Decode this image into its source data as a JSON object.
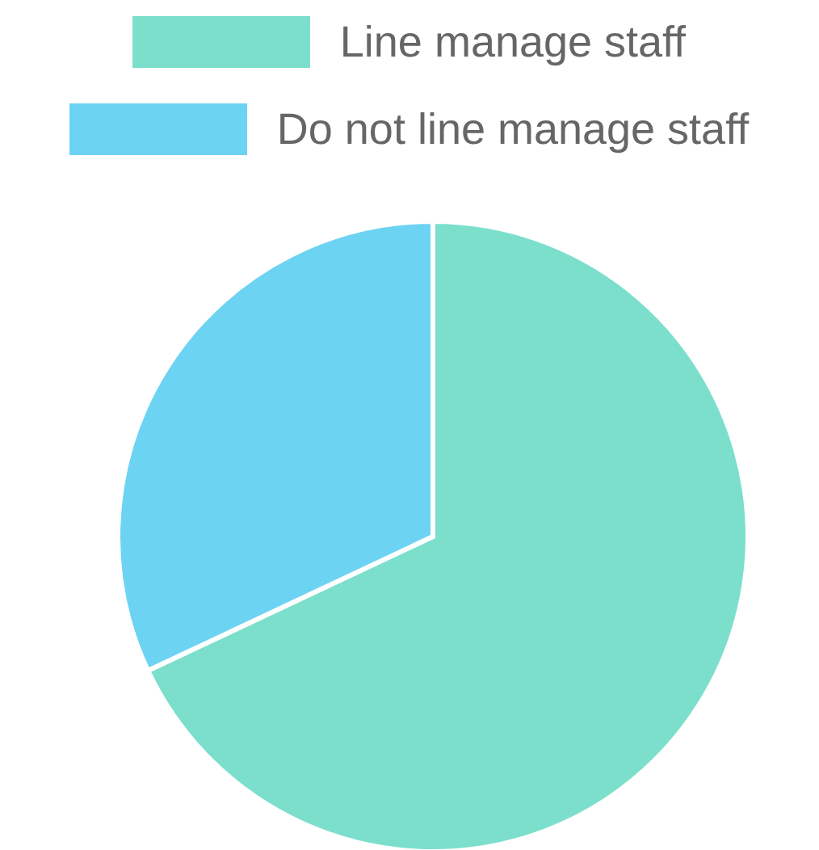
{
  "chart_data": {
    "type": "pie",
    "categories": [
      "Line manage staff",
      "Do not line manage staff"
    ],
    "values": [
      68,
      32
    ],
    "colors": [
      "#7bdfcc",
      "#6dd3f2"
    ],
    "legend": "top"
  }
}
